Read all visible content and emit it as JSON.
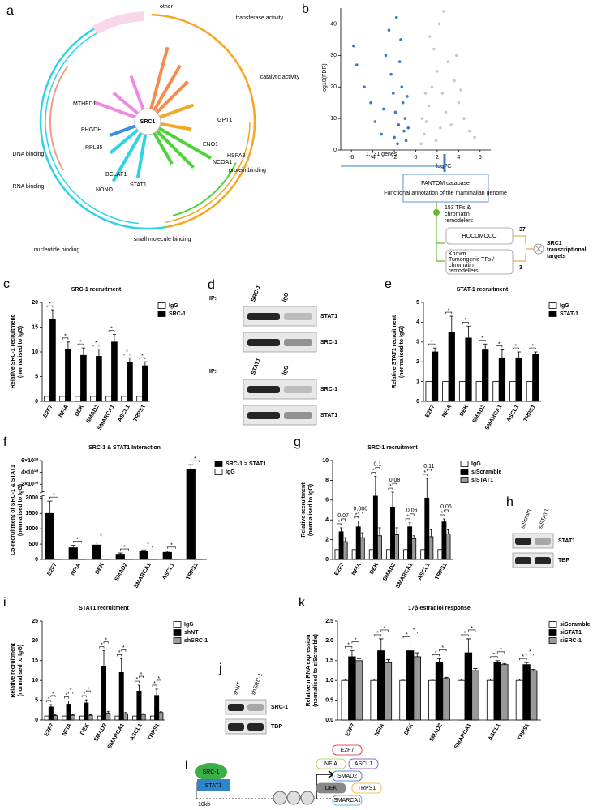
{
  "chart_data": [
    {
      "type": "bar",
      "label": "c",
      "title": "SRC-1 recruitment",
      "y_label": [
        "Relative SRC-1 recruitment",
        "(normalised to IgG)"
      ],
      "categories": [
        "E2F7",
        "NFIA",
        "DEK",
        "SMAD2",
        "SMARCA1",
        "ASCL1",
        "TRPS1"
      ],
      "series": [
        {
          "name": "IgG",
          "color": "#ffffff",
          "values": [
            1,
            1,
            1,
            1,
            1,
            1,
            1
          ]
        },
        {
          "name": "SRC-1",
          "color": "#000000",
          "values": [
            16.5,
            10.5,
            9.3,
            9.1,
            12,
            7.8,
            7.2
          ],
          "errors": [
            2,
            1.5,
            1.5,
            1.5,
            1.5,
            1,
            0.8
          ]
        }
      ],
      "ylim": [
        0,
        20
      ],
      "yticks": [
        0,
        5,
        10,
        15,
        20
      ],
      "significance_label": "*",
      "legend": "upper right"
    },
    {
      "type": "bar",
      "label": "e",
      "title": "STAT-1 recruitment",
      "y_label": [
        "Relative STAT1 recruitment",
        "(normalised to IgG)"
      ],
      "categories": [
        "E2F7",
        "NFIA",
        "DEK",
        "SMAD2",
        "SMARCA1",
        "ASCL1",
        "TRPS1"
      ],
      "series": [
        {
          "name": "IgG",
          "color": "#ffffff",
          "values": [
            1,
            1,
            1,
            1,
            1,
            1,
            1
          ]
        },
        {
          "name": "STAT-1",
          "color": "#000000",
          "values": [
            2.5,
            3.5,
            3.2,
            2.6,
            2.2,
            2.2,
            2.4
          ],
          "errors": [
            0.2,
            0.8,
            0.6,
            0.3,
            0.4,
            0.3,
            0.1
          ]
        }
      ],
      "ylim": [
        0,
        5
      ],
      "yticks": [
        0,
        1,
        2,
        3,
        4,
        5
      ],
      "significance_label": "*",
      "legend": "upper right"
    },
    {
      "type": "bar",
      "label": "f",
      "title": "SRC-1 & STAT1 Interaction",
      "y_label": [
        "Co-recruitment of SRC-1 & STAT1",
        "(normalised to IgG)"
      ],
      "categories": [
        "E2F7",
        "NFIA",
        "DEK",
        "SMAD2",
        "SMARCA1",
        "ASCL1",
        "TRPS1"
      ],
      "series": [
        {
          "name": "SRC-1 > STAT1",
          "color": "#000000",
          "values": [
            1500,
            380,
            470,
            170,
            260,
            230,
            45000000000
          ],
          "errors": [
            400,
            80,
            100,
            40,
            50,
            40,
            8000000000
          ]
        },
        {
          "name": "IgG",
          "color": "#ffffff",
          "values": [
            1,
            1,
            1,
            1,
            1,
            1,
            1
          ]
        }
      ],
      "ylim_segments": [
        [
          0,
          2000
        ],
        [
          10000000000,
          60000000000
        ]
      ],
      "yticks": [
        0,
        500,
        1000,
        1500,
        2000,
        {
          "value": 20000000000,
          "label": "2×10¹⁰"
        },
        {
          "value": 40000000000,
          "label": "4×10¹⁰"
        },
        {
          "value": 60000000000,
          "label": "6×10¹⁰"
        }
      ],
      "significance_label": "*",
      "legend": "upper right"
    },
    {
      "type": "bar",
      "label": "g",
      "title": "SRC-1 recruitment",
      "y_label": [
        "Relative recruitment",
        "(normalised to IgG)"
      ],
      "categories": [
        "E2F7",
        "NFIA",
        "DEK",
        "SMAD2",
        "SMARCA1",
        "ASCL1",
        "TRPS1"
      ],
      "series": [
        {
          "name": "IgG",
          "color": "#ffffff",
          "values": [
            1,
            1,
            1,
            1,
            1,
            1,
            1
          ]
        },
        {
          "name": "siScramble",
          "color": "#000000",
          "values": [
            2.8,
            3.3,
            6.4,
            5.3,
            3.3,
            6.2,
            3.8
          ],
          "errors": [
            0.4,
            0.6,
            2,
            1.5,
            0.4,
            2,
            0.3
          ]
        },
        {
          "name": "siSTAT1",
          "color": "#9a9a9a",
          "values": [
            1.8,
            2.2,
            2.4,
            2.5,
            2.1,
            2.3,
            2.6
          ],
          "errors": [
            0.4,
            0.5,
            0.8,
            0.7,
            0.3,
            0.7,
            0.4
          ]
        }
      ],
      "ylim": [
        0,
        10
      ],
      "yticks": [
        0,
        2,
        4,
        6,
        8,
        10
      ],
      "significance_label": "*",
      "p_values": [
        "0.07",
        "0.086",
        "0.1",
        "0.08",
        "0.06",
        "0.11",
        "0.06"
      ],
      "legend": "upper right"
    },
    {
      "type": "bar",
      "label": "i",
      "title": "STAT1 recruitment",
      "y_label": [
        "Relative recruitment",
        "(normalised to IgG)"
      ],
      "categories": [
        "E2F7",
        "NFIA",
        "DEK",
        "SMAD2",
        "SMARCA1",
        "ASCL1",
        "TRPS1"
      ],
      "series": [
        {
          "name": "IgG",
          "color": "#ffffff",
          "values": [
            1,
            1,
            1,
            1,
            1,
            1,
            1
          ]
        },
        {
          "name": "shNT",
          "color": "#000000",
          "values": [
            3.3,
            4,
            4.3,
            13.5,
            12,
            7.3,
            6.2
          ],
          "errors": [
            0.6,
            0.8,
            0.8,
            4,
            3.5,
            1.5,
            1.6
          ]
        },
        {
          "name": "shSRC-1",
          "color": "#9a9a9a",
          "values": [
            1.1,
            1.2,
            1.2,
            1.8,
            1.6,
            1.4,
            1.9
          ],
          "errors": [
            0.2,
            0.2,
            0.2,
            0.4,
            0.3,
            0.2,
            0.2
          ]
        }
      ],
      "ylim": [
        0,
        25
      ],
      "yticks": [
        0,
        5,
        10,
        15,
        20,
        25
      ],
      "significance_label": "*",
      "legend": "upper right"
    },
    {
      "type": "bar",
      "label": "k",
      "title": "17β-estradiol response",
      "y_label": [
        "Relative mRNA expression",
        "(normalised to siScramble)"
      ],
      "categories": [
        "E2F7",
        "NFIA",
        "DEK",
        "SMAD2",
        "SMARCA1",
        "ASCL1",
        "TRPS1"
      ],
      "series": [
        {
          "name": "siScramble",
          "color": "#ffffff",
          "values": [
            1,
            1,
            1,
            1,
            1,
            1,
            1
          ],
          "errors": [
            0.03,
            0.03,
            0.03,
            0.03,
            0.03,
            0.03,
            0.03
          ]
        },
        {
          "name": "siSTAT1",
          "color": "#000000",
          "values": [
            1.6,
            1.75,
            1.75,
            1.45,
            1.7,
            1.45,
            1.4
          ],
          "errors": [
            0.15,
            0.3,
            0.25,
            0.1,
            0.35,
            0.05,
            0.05
          ]
        },
        {
          "name": "siSRC-1",
          "color": "#9a9a9a",
          "values": [
            1.5,
            1.45,
            1.6,
            1.05,
            1.25,
            1.4,
            1.25
          ],
          "errors": [
            0.05,
            0.08,
            0.1,
            0.03,
            0.05,
            0.03,
            0.03
          ]
        }
      ],
      "ylim": [
        0,
        2.5
      ],
      "yticks": [
        {
          "value": 0,
          "label": "0.0"
        },
        {
          "value": 0.5,
          "label": "0.5"
        },
        {
          "value": 1,
          "label": "1.0"
        },
        {
          "value": 1.5,
          "label": "1.5"
        },
        {
          "value": 2,
          "label": "2.0"
        },
        {
          "value": 2.5,
          "label": "2.5"
        }
      ],
      "significance_label": "*",
      "legend": "upper right"
    },
    {
      "type": "scatter",
      "label": "b",
      "x_label": "logFC",
      "y_label": "-log10(FDR)",
      "xlim": [
        -7,
        7
      ],
      "xticks": [
        -6,
        -4,
        -2,
        0,
        2,
        4,
        6
      ],
      "ylim": [
        0,
        45
      ],
      "yticks": [
        0,
        10,
        20,
        30,
        40
      ],
      "annotation": "1,731 genes",
      "series": [
        {
          "color": "#3a7cc2",
          "x": [
            -5.8,
            -5.5,
            -4.8,
            -4.2,
            -3.8,
            -3.2,
            -2.8,
            -2.5,
            -2.3,
            -2.1,
            -1.9,
            -1.8,
            -1.6,
            -1.5,
            -1.3,
            -1.2,
            -1.1,
            -1,
            -0.9,
            -0.8,
            -1.4,
            -0.7,
            -2,
            -3,
            -1.7
          ],
          "values": [
            33,
            27,
            20,
            15,
            9,
            5,
            30,
            38,
            24,
            18,
            12,
            42,
            8,
            28,
            20,
            15,
            6,
            10,
            3,
            17,
            35,
            7,
            4,
            13,
            2
          ]
        },
        {
          "color": "#c8c8c8",
          "x": [
            0.5,
            0.8,
            1,
            1.2,
            1.5,
            1.7,
            2,
            2.2,
            2.5,
            2.8,
            3,
            3.3,
            3.6,
            4,
            4.5,
            5,
            1.3,
            0.6,
            2.6,
            1.9,
            3.8,
            0.9,
            5.5,
            2.3,
            4.2
          ],
          "values": [
            2,
            5,
            9,
            14,
            20,
            32,
            25,
            40,
            18,
            12,
            28,
            8,
            22,
            15,
            10,
            6,
            36,
            10,
            44,
            3,
            30,
            18,
            4,
            7,
            19
          ]
        }
      ]
    }
  ],
  "panel_a": {
    "label": "a",
    "center": "SRC1",
    "arcs": [
      "other",
      "transferase activity",
      "catalytic activity",
      "protein binding",
      "small molecule binding",
      "nucleotide binding",
      "RNA binding",
      "DNA binding"
    ],
    "genes": [
      "ENO1",
      "NCOA1",
      "STAT1",
      "MTHFD1",
      "RPL35",
      "NONO",
      "HSPA8",
      "GPT1",
      "PHGDH",
      "BCLAF1"
    ]
  },
  "panel_b_flow": {
    "fantom": "FANTOM database",
    "fantom_sub": "Functional annotation of the mammalian genome",
    "tfs": [
      "153 TFs &",
      "chromatin",
      "remodelers"
    ],
    "hocomoco": "HOCOMOCO",
    "known": [
      "Known",
      "Tumorigenic TFs /",
      "chromatin",
      "remodellers"
    ],
    "count_hocomoco": "37",
    "count_known": "3",
    "result": [
      "SRC1",
      "transcriptional",
      "targets"
    ]
  },
  "panel_d": {
    "label": "d",
    "ip": "IP:",
    "top_lanes": [
      "SRC-1",
      "IgG"
    ],
    "top_rows": [
      "STAT1",
      "SRC-1"
    ],
    "bottom_lanes": [
      "STAT1",
      "IgG"
    ],
    "bottom_rows": [
      "SRC-1",
      "STAT1"
    ]
  },
  "panel_h": {
    "label": "h",
    "lanes": [
      "siScram",
      "siSTAT1"
    ],
    "rows": [
      "STAT1",
      "TBP"
    ]
  },
  "panel_j": {
    "label": "j",
    "lanes": [
      "shNT",
      "shSRC-1"
    ],
    "rows": [
      "SRC-1",
      "TBP"
    ]
  },
  "panel_l": {
    "label": "l",
    "coactivator": "SRC-1",
    "factor": "STAT1",
    "distance": "10kb",
    "targets": [
      "E2F7",
      "NFIA",
      "ASCL1",
      "SMAD2",
      "TRPS1",
      "DEK",
      "SMARCA1"
    ]
  }
}
